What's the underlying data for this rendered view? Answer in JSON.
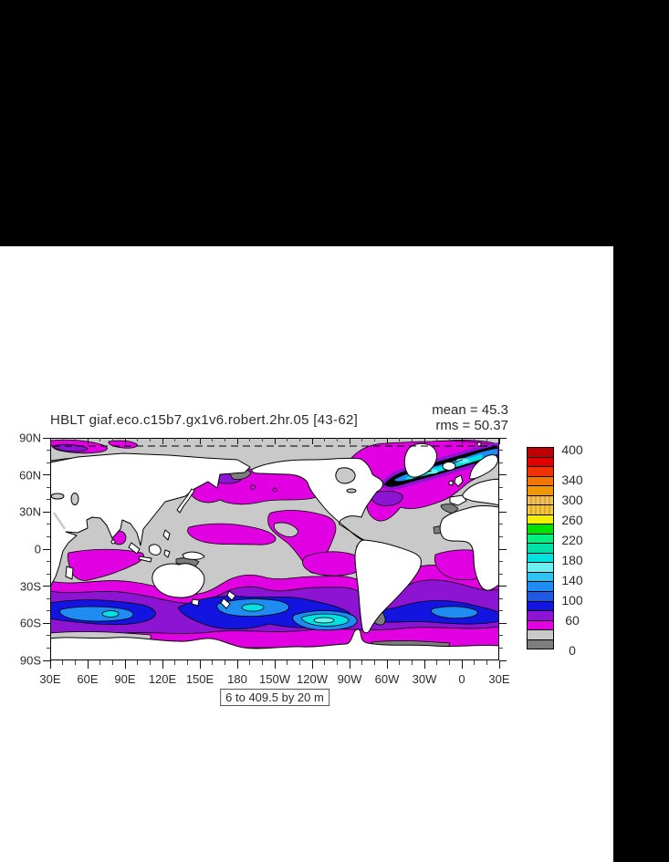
{
  "page": {
    "background": "#000000",
    "panel_background": "#ffffff"
  },
  "title": "HBLT giaf.eco.c15b7.gx1v6.robert.2hr.05 [43-62]",
  "stats": {
    "mean": "mean = 45.3",
    "rms": "rms = 50.37"
  },
  "caption": "6 to 409.5 by 20 m",
  "axes": {
    "x_tick_labels": [
      "30E",
      "60E",
      "90E",
      "120E",
      "150E",
      "180",
      "150W",
      "120W",
      "90W",
      "60W",
      "30W",
      "0",
      "30E"
    ],
    "y_tick_labels": [
      "90N",
      "60N",
      "30N",
      "0",
      "30S",
      "60S",
      "90S"
    ],
    "x_minor_per_interval": 2,
    "y_minor_per_interval": 2
  },
  "colorbar": {
    "labels": [
      {
        "value": 400,
        "text": "400"
      },
      {
        "value": 340,
        "text": "340"
      },
      {
        "value": 300,
        "text": "300"
      },
      {
        "value": 260,
        "text": "260"
      },
      {
        "value": 220,
        "text": "220"
      },
      {
        "value": 180,
        "text": "180"
      },
      {
        "value": 140,
        "text": "140"
      },
      {
        "value": 100,
        "text": "100"
      },
      {
        "value": 60,
        "text": "60"
      },
      {
        "value": 0,
        "text": "0"
      }
    ],
    "segments_bottom_to_top": [
      "#7d7d7d",
      "#c9c9c9",
      "#e100e1",
      "#8c14d2",
      "#1414e1",
      "#1e5ae6",
      "#1e8cf0",
      "#2fc2f5",
      "#69f0f0",
      "#00e1e1",
      "#00e1aa",
      "#00f080",
      "#00e100",
      "#f0f000",
      "#f0c83c",
      "#f0be5a",
      "#f09600",
      "#f07800",
      "#f03200",
      "#e10000",
      "#be0000"
    ],
    "dotted_segment_indices": [
      14,
      15
    ]
  },
  "chart_data": {
    "type": "heatmap",
    "subtype": "filled-contour world map (GrADS style)",
    "title": "HBLT giaf.eco.c15b7.gx1v6.robert.2hr.05 [43-62]",
    "variable": "HBLT (boundary layer depth)",
    "units": "m",
    "mean": 45.3,
    "rms": 50.37,
    "contour_levels": "6 to 409.5 by 20",
    "x_axis": {
      "label": "longitude",
      "ticks": [
        "30E",
        "60E",
        "90E",
        "120E",
        "150E",
        "180",
        "150W",
        "120W",
        "90W",
        "60W",
        "30W",
        "0",
        "30E"
      ],
      "minor_tick_interval_deg": 10
    },
    "y_axis": {
      "label": "latitude",
      "ticks": [
        "90N",
        "60N",
        "30N",
        "0",
        "30S",
        "60S",
        "90S"
      ],
      "minor_tick_interval_deg": 10
    },
    "colorbar_tick_values": [
      0,
      60,
      100,
      140,
      180,
      220,
      260,
      300,
      340,
      400
    ],
    "colorbar_range": [
      0,
      400
    ],
    "palette_bottom_to_top": [
      "#7d7d7d",
      "#c9c9c9",
      "#e100e1",
      "#8c14d2",
      "#1414e1",
      "#1e5ae6",
      "#1e8cf0",
      "#2fc2f5",
      "#69f0f0",
      "#00e1e1",
      "#00e1aa",
      "#00f080",
      "#00e100",
      "#f0f000",
      "#f0c83c",
      "#f0be5a",
      "#f09600",
      "#f07800",
      "#f03200",
      "#e10000",
      "#be0000"
    ],
    "features": [
      "tropical and subtropical oceans mostly shallow (<40 m, light gray) with thin dark-gray (<20 m) coastal and equatorial Atlantic bands",
      "magenta (40-60 m) patches: North Pacific 30-50N, eastern and western tropical Pacific, south Indian Ocean wedge, South Pacific ~30S, South Atlantic ~30S, Arctic fringes",
      "Southern Ocean 45-65S circumpolar band of deep mixing: magenta/violet/blue with dodger-blue and cyan cores (60-200 m)",
      "North Atlantic subpolar band from Labrador Sea to Norwegian Sea: deepest values (black band >200 m with cyan/pale-cyan cores approaching 400 m)",
      "white = land; Antarctica white south of ~65S"
    ],
    "grid": false,
    "legend_position": "right vertical colorbar"
  }
}
